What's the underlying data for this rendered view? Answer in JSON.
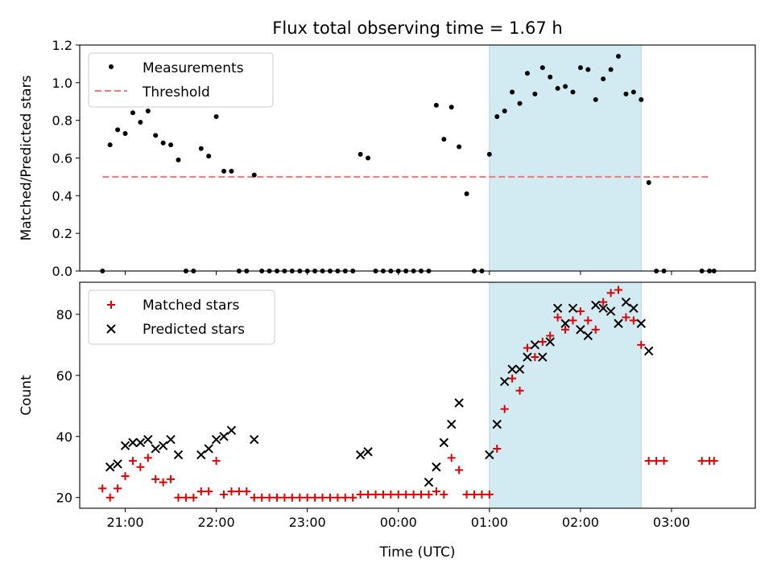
{
  "title": "Flux total observing time = 1.67 h",
  "colors": {
    "measurement": "#000000",
    "threshold": "#f08080",
    "matched": "#e00000",
    "predicted": "#000000",
    "highlight": "#add8e6"
  },
  "x_tick_labels": [
    "21:00",
    "22:00",
    "23:00",
    "00:00",
    "01:00",
    "02:00",
    "03:00"
  ],
  "chart_data": [
    {
      "type": "scatter",
      "ylabel": "Matched/Predicted stars",
      "xlim_hours": [
        20.5,
        27.92
      ],
      "ylim": [
        0,
        1.2
      ],
      "yticks": [
        "0.0",
        "0.2",
        "0.4",
        "0.6",
        "0.8",
        "1.0",
        "1.2"
      ],
      "highlight_span": [
        "01:00",
        "02:40"
      ],
      "legend": {
        "placement": "upper-left",
        "entries": [
          "Measurements",
          "Threshold"
        ]
      },
      "threshold": {
        "name": "Threshold",
        "value": 0.5,
        "x_range": [
          "20:45",
          "03:25"
        ]
      },
      "series": [
        {
          "name": "Measurements",
          "points": [
            [
              "20:45",
              0.0
            ],
            [
              "20:50",
              0.67
            ],
            [
              "20:55",
              0.75
            ],
            [
              "21:00",
              0.73
            ],
            [
              "21:05",
              0.84
            ],
            [
              "21:10",
              0.79
            ],
            [
              "21:15",
              0.85
            ],
            [
              "21:20",
              0.72
            ],
            [
              "21:25",
              0.68
            ],
            [
              "21:30",
              0.67
            ],
            [
              "21:35",
              0.59
            ],
            [
              "21:40",
              0.0
            ],
            [
              "21:45",
              0.0
            ],
            [
              "21:50",
              0.65
            ],
            [
              "21:55",
              0.61
            ],
            [
              "22:00",
              0.82
            ],
            [
              "22:05",
              0.53
            ],
            [
              "22:10",
              0.53
            ],
            [
              "22:15",
              0.0
            ],
            [
              "22:20",
              0.0
            ],
            [
              "22:25",
              0.51
            ],
            [
              "22:30",
              0.0
            ],
            [
              "22:35",
              0.0
            ],
            [
              "22:40",
              0.0
            ],
            [
              "22:45",
              0.0
            ],
            [
              "22:50",
              0.0
            ],
            [
              "22:55",
              0.0
            ],
            [
              "23:00",
              0.0
            ],
            [
              "23:05",
              0.0
            ],
            [
              "23:10",
              0.0
            ],
            [
              "23:15",
              0.0
            ],
            [
              "23:20",
              0.0
            ],
            [
              "23:25",
              0.0
            ],
            [
              "23:30",
              0.0
            ],
            [
              "23:35",
              0.62
            ],
            [
              "23:40",
              0.6
            ],
            [
              "23:45",
              0.0
            ],
            [
              "23:50",
              0.0
            ],
            [
              "23:55",
              0.0
            ],
            [
              "00:00",
              0.0
            ],
            [
              "00:05",
              0.0
            ],
            [
              "00:10",
              0.0
            ],
            [
              "00:15",
              0.0
            ],
            [
              "00:20",
              0.0
            ],
            [
              "00:25",
              0.88
            ],
            [
              "00:30",
              0.7
            ],
            [
              "00:35",
              0.87
            ],
            [
              "00:40",
              0.66
            ],
            [
              "00:45",
              0.41
            ],
            [
              "00:50",
              0.0
            ],
            [
              "00:55",
              0.0
            ],
            [
              "01:00",
              0.62
            ],
            [
              "01:05",
              0.82
            ],
            [
              "01:10",
              0.85
            ],
            [
              "01:15",
              0.95
            ],
            [
              "01:20",
              0.89
            ],
            [
              "01:25",
              1.05
            ],
            [
              "01:30",
              0.94
            ],
            [
              "01:35",
              1.08
            ],
            [
              "01:40",
              1.03
            ],
            [
              "01:45",
              0.97
            ],
            [
              "01:50",
              0.98
            ],
            [
              "01:55",
              0.95
            ],
            [
              "02:00",
              1.08
            ],
            [
              "02:05",
              1.07
            ],
            [
              "02:10",
              0.91
            ],
            [
              "02:15",
              1.02
            ],
            [
              "02:20",
              1.07
            ],
            [
              "02:25",
              1.14
            ],
            [
              "02:30",
              0.94
            ],
            [
              "02:35",
              0.95
            ],
            [
              "02:40",
              0.91
            ],
            [
              "02:45",
              0.47
            ],
            [
              "02:50",
              0.0
            ],
            [
              "02:55",
              0.0
            ],
            [
              "03:20",
              0.0
            ],
            [
              "03:25",
              0.0
            ],
            [
              "03:28",
              0.0
            ]
          ]
        }
      ]
    },
    {
      "type": "scatter",
      "xlabel": "Time (UTC)",
      "ylabel": "Count",
      "xlim_hours": [
        20.5,
        27.92
      ],
      "ylim": [
        16.5,
        90.5
      ],
      "yticks": [
        "20",
        "40",
        "60",
        "80"
      ],
      "highlight_span": [
        "01:00",
        "02:40"
      ],
      "legend": {
        "placement": "upper-left",
        "entries": [
          "Matched stars",
          "Predicted stars"
        ]
      },
      "series": [
        {
          "name": "Matched stars",
          "points": [
            [
              "20:45",
              23
            ],
            [
              "20:50",
              20
            ],
            [
              "20:55",
              23
            ],
            [
              "21:00",
              27
            ],
            [
              "21:05",
              32
            ],
            [
              "21:10",
              30
            ],
            [
              "21:15",
              33
            ],
            [
              "21:20",
              26
            ],
            [
              "21:25",
              25
            ],
            [
              "21:30",
              26
            ],
            [
              "21:35",
              20
            ],
            [
              "21:40",
              20
            ],
            [
              "21:45",
              20
            ],
            [
              "21:50",
              22
            ],
            [
              "21:55",
              22
            ],
            [
              "22:00",
              32
            ],
            [
              "22:05",
              21
            ],
            [
              "22:10",
              22
            ],
            [
              "22:15",
              22
            ],
            [
              "22:20",
              22
            ],
            [
              "22:25",
              20
            ],
            [
              "22:30",
              20
            ],
            [
              "22:35",
              20
            ],
            [
              "22:40",
              20
            ],
            [
              "22:45",
              20
            ],
            [
              "22:50",
              20
            ],
            [
              "22:55",
              20
            ],
            [
              "23:00",
              20
            ],
            [
              "23:05",
              20
            ],
            [
              "23:10",
              20
            ],
            [
              "23:15",
              20
            ],
            [
              "23:20",
              20
            ],
            [
              "23:25",
              20
            ],
            [
              "23:30",
              20
            ],
            [
              "23:35",
              21
            ],
            [
              "23:40",
              21
            ],
            [
              "23:45",
              21
            ],
            [
              "23:50",
              21
            ],
            [
              "23:55",
              21
            ],
            [
              "00:00",
              21
            ],
            [
              "00:05",
              21
            ],
            [
              "00:10",
              21
            ],
            [
              "00:15",
              21
            ],
            [
              "00:20",
              21
            ],
            [
              "00:25",
              22
            ],
            [
              "00:30",
              21
            ],
            [
              "00:35",
              33
            ],
            [
              "00:40",
              29
            ],
            [
              "00:45",
              21
            ],
            [
              "00:50",
              21
            ],
            [
              "00:55",
              21
            ],
            [
              "01:00",
              21
            ],
            [
              "01:05",
              36
            ],
            [
              "01:10",
              49
            ],
            [
              "01:15",
              59
            ],
            [
              "01:20",
              55
            ],
            [
              "01:25",
              69
            ],
            [
              "01:30",
              66
            ],
            [
              "01:35",
              71
            ],
            [
              "01:40",
              73
            ],
            [
              "01:45",
              79
            ],
            [
              "01:50",
              75
            ],
            [
              "01:55",
              78
            ],
            [
              "02:00",
              81
            ],
            [
              "02:05",
              78
            ],
            [
              "02:10",
              75
            ],
            [
              "02:15",
              84
            ],
            [
              "02:20",
              87
            ],
            [
              "02:25",
              88
            ],
            [
              "02:30",
              79
            ],
            [
              "02:35",
              78
            ],
            [
              "02:40",
              70
            ],
            [
              "02:45",
              32
            ],
            [
              "02:50",
              32
            ],
            [
              "02:55",
              32
            ],
            [
              "03:20",
              32
            ],
            [
              "03:25",
              32
            ],
            [
              "03:28",
              32
            ]
          ]
        },
        {
          "name": "Predicted stars",
          "points": [
            [
              "20:50",
              30
            ],
            [
              "20:55",
              31
            ],
            [
              "21:00",
              37
            ],
            [
              "21:05",
              38
            ],
            [
              "21:10",
              38
            ],
            [
              "21:15",
              39
            ],
            [
              "21:20",
              36
            ],
            [
              "21:25",
              37
            ],
            [
              "21:30",
              39
            ],
            [
              "21:35",
              34
            ],
            [
              "21:50",
              34
            ],
            [
              "21:55",
              36
            ],
            [
              "22:00",
              39
            ],
            [
              "22:05",
              40
            ],
            [
              "22:10",
              42
            ],
            [
              "22:25",
              39
            ],
            [
              "23:35",
              34
            ],
            [
              "23:40",
              35
            ],
            [
              "00:20",
              25
            ],
            [
              "00:25",
              30
            ],
            [
              "00:30",
              38
            ],
            [
              "00:35",
              44
            ],
            [
              "00:40",
              51
            ],
            [
              "01:00",
              34
            ],
            [
              "01:05",
              44
            ],
            [
              "01:10",
              58
            ],
            [
              "01:15",
              62
            ],
            [
              "01:20",
              62
            ],
            [
              "01:25",
              66
            ],
            [
              "01:30",
              70
            ],
            [
              "01:35",
              66
            ],
            [
              "01:40",
              71
            ],
            [
              "01:45",
              82
            ],
            [
              "01:50",
              77
            ],
            [
              "01:55",
              82
            ],
            [
              "02:00",
              75
            ],
            [
              "02:05",
              73
            ],
            [
              "02:10",
              83
            ],
            [
              "02:15",
              82
            ],
            [
              "02:20",
              81
            ],
            [
              "02:25",
              77
            ],
            [
              "02:30",
              84
            ],
            [
              "02:35",
              82
            ],
            [
              "02:40",
              77
            ],
            [
              "02:45",
              68
            ]
          ]
        }
      ]
    }
  ]
}
